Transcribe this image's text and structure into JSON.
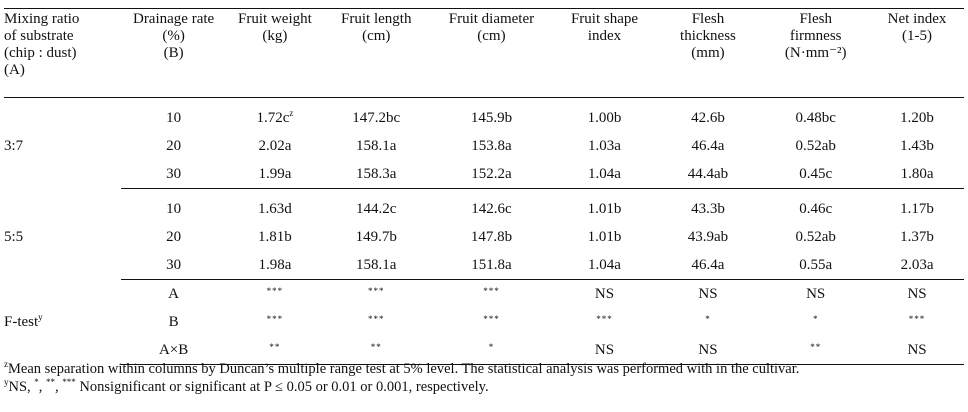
{
  "table": {
    "headers": [
      [
        "Mixing ratio",
        "of substrate",
        "(chip : dust)",
        "(A)"
      ],
      [
        "Drainage rate",
        "(%)",
        "(B)"
      ],
      [
        "Fruit weight",
        "(kg)"
      ],
      [
        "Fruit length",
        "(cm)"
      ],
      [
        "Fruit diameter",
        "(cm)"
      ],
      [
        "Fruit shape",
        "index"
      ],
      [
        "Flesh",
        "thickness",
        "(mm)"
      ],
      [
        "Flesh",
        "firmness",
        "(N·mm⁻²)"
      ],
      [
        "Net index",
        "(1-5)"
      ]
    ],
    "groups": [
      {
        "label": "3:7",
        "rows": [
          [
            "10",
            "1.72c",
            "147.2bc",
            "145.9b",
            "1.00b",
            "42.6b",
            "0.48bc",
            "1.20b"
          ],
          [
            "20",
            "2.02a",
            "158.1a",
            "153.8a",
            "1.03a",
            "46.4a",
            "0.52ab",
            "1.43b"
          ],
          [
            "30",
            "1.99a",
            "158.3a",
            "152.2a",
            "1.04a",
            "44.4ab",
            "0.45c",
            "1.80a"
          ]
        ],
        "first_value_sup": "z"
      },
      {
        "label": "5:5",
        "rows": [
          [
            "10",
            "1.63d",
            "144.2c",
            "142.6c",
            "1.01b",
            "43.3b",
            "0.46c",
            "1.17b"
          ],
          [
            "20",
            "1.81b",
            "149.7b",
            "147.8b",
            "1.01b",
            "43.9ab",
            "0.52ab",
            "1.37b"
          ],
          [
            "30",
            "1.98a",
            "158.1a",
            "151.8a",
            "1.04a",
            "46.4a",
            "0.55a",
            "2.03a"
          ]
        ]
      }
    ],
    "ftest": {
      "label": "F-test",
      "label_sup": "y",
      "rows": [
        [
          "A",
          "***",
          "***",
          "***",
          "NS",
          "NS",
          "NS",
          "NS"
        ],
        [
          "B",
          "***",
          "***",
          "***",
          "***",
          "*",
          "*",
          "***"
        ],
        [
          "A×B",
          "**",
          "**",
          "*",
          "NS",
          "NS",
          "**",
          "NS"
        ]
      ]
    }
  },
  "notes": {
    "z_sup": "z",
    "z_text": "Mean separation within columns by Duncan’s multiple range test at 5% level. The statistical analysis was performed with in the cultivar.",
    "y_sup": "y",
    "y_text_prefix": "NS, ",
    "y_s1": "*",
    "y_s2": "**",
    "y_s3": "***",
    "y_text_suffix": " Nonsignificant or significant at P ≤ 0.05 or 0.01 or 0.001, respectively."
  }
}
